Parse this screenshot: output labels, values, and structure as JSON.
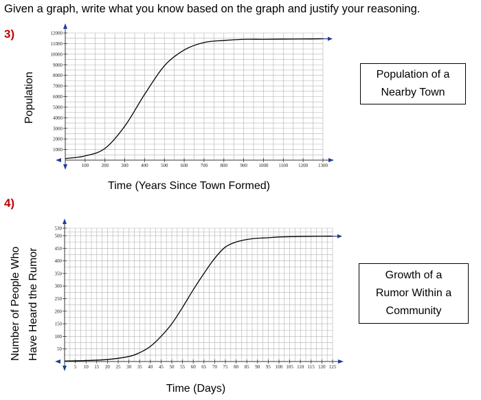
{
  "instructions": "Given a graph, write what you know based on the graph and justify your reasoning.",
  "problems": [
    {
      "number": "3)",
      "y_label": "Population",
      "x_label": "Time (Years Since Town Formed)",
      "title_lines": [
        "Population of a",
        "Nearby Town"
      ]
    },
    {
      "number": "4)",
      "y_label_lines": [
        "Number of People Who",
        "Have Heard the Rumor"
      ],
      "x_label": "Time (Days)",
      "title_lines": [
        "Growth of a",
        "Rumor Within a",
        "Community"
      ]
    }
  ],
  "chart_data": [
    {
      "type": "line",
      "title": "Population of a Nearby Town",
      "xlabel": "Time (Years Since Town Formed)",
      "ylabel": "Population",
      "xlim": [
        0,
        1300
      ],
      "ylim": [
        0,
        12000
      ],
      "x_ticks": [
        "100",
        "200",
        "300",
        "400",
        "500",
        "600",
        "700",
        "800",
        "900",
        "1000",
        "1100",
        "1200",
        "1300"
      ],
      "y_ticks": [
        "1000",
        "2000",
        "3000",
        "4000",
        "5000",
        "6000",
        "7000",
        "8000",
        "9000",
        "10000",
        "11000",
        "12000"
      ],
      "grid": true,
      "x": [
        0,
        100,
        200,
        300,
        400,
        500,
        600,
        700,
        800,
        900,
        1000,
        1100,
        1200,
        1300
      ],
      "y": [
        150,
        400,
        1100,
        3200,
        6200,
        8900,
        10400,
        11100,
        11300,
        11400,
        11400,
        11420,
        11430,
        11450
      ]
    },
    {
      "type": "line",
      "title": "Growth of a Rumor Within a Community",
      "xlabel": "Time (Days)",
      "ylabel": "Number of People Who Have Heard the Rumor",
      "xlim": [
        0,
        125
      ],
      "ylim": [
        0,
        530
      ],
      "x_ticks": [
        "5",
        "10",
        "15",
        "20",
        "25",
        "30",
        "35",
        "40",
        "45",
        "50",
        "55",
        "60",
        "65",
        "70",
        "75",
        "80",
        "85",
        "90",
        "95",
        "100",
        "105",
        "110",
        "115",
        "120",
        "125"
      ],
      "y_ticks": [
        "50",
        "100",
        "150",
        "200",
        "250",
        "300",
        "350",
        "400",
        "450",
        "500",
        "530"
      ],
      "grid": true,
      "x": [
        0,
        10,
        20,
        30,
        35,
        40,
        45,
        50,
        55,
        60,
        65,
        70,
        75,
        80,
        85,
        90,
        95,
        100,
        110,
        120,
        125
      ],
      "y": [
        2,
        4,
        8,
        20,
        35,
        60,
        100,
        150,
        215,
        285,
        350,
        410,
        455,
        475,
        485,
        490,
        492,
        495,
        497,
        498,
        498
      ]
    }
  ]
}
